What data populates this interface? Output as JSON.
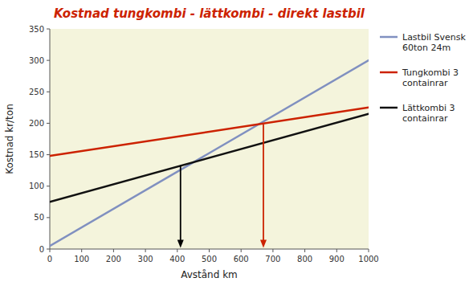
{
  "chart_data": {
    "type": "line",
    "title": "Kostnad tungkombi - lättkombi - direkt lastbil",
    "xlabel": "Avstånd km",
    "ylabel": "Kostnad kr/ton",
    "xlim": [
      0,
      1000
    ],
    "ylim": [
      0,
      350
    ],
    "xticks": [
      0,
      100,
      200,
      300,
      400,
      500,
      600,
      700,
      800,
      900,
      1000
    ],
    "yticks": [
      0,
      50,
      100,
      150,
      200,
      250,
      300,
      350
    ],
    "grid": false,
    "legend": "right",
    "series": [
      {
        "name": "Lastbil Svensk\n60ton 24m",
        "color": "#8090c0",
        "x": [
          0,
          1000
        ],
        "values": [
          5,
          300
        ]
      },
      {
        "name": "Tungkombi 3\ncontainrar",
        "color": "#cc2200",
        "x": [
          0,
          1000
        ],
        "values": [
          148,
          225
        ]
      },
      {
        "name": "Lättkombi 3\ncontainrar",
        "color": "#111111",
        "x": [
          0,
          1000
        ],
        "values": [
          75,
          215
        ]
      }
    ],
    "arrows": [
      {
        "x": 410,
        "y_top": 133,
        "y_bottom": 2,
        "color": "black"
      },
      {
        "x": 670,
        "y_top": 198,
        "y_bottom": 2,
        "color": "#cc2200"
      }
    ]
  }
}
